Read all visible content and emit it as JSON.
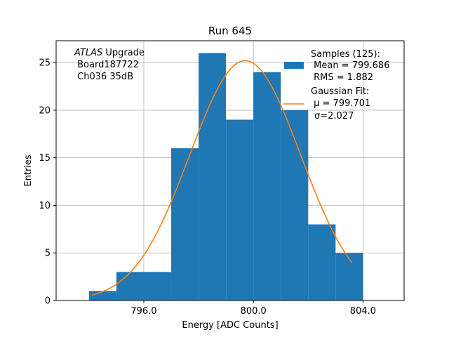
{
  "chart_data": {
    "type": "bar",
    "title": "Run 645",
    "xlabel": "Energy [ADC Counts]",
    "ylabel": "Entries",
    "xlim": [
      792.8,
      805.5
    ],
    "ylim": [
      0,
      27.3
    ],
    "grid": true,
    "x_ticks": [
      796.0,
      800.0,
      804.0
    ],
    "x_tick_labels": [
      "796.0",
      "800.0",
      "804.0"
    ],
    "y_ticks": [
      0,
      5,
      10,
      15,
      20,
      25
    ],
    "y_tick_labels": [
      "0",
      "5",
      "10",
      "15",
      "20",
      "25"
    ],
    "bins": [
      {
        "x0": 794.0,
        "x1": 795.0,
        "count": 1
      },
      {
        "x0": 795.0,
        "x1": 796.0,
        "count": 3
      },
      {
        "x0": 796.0,
        "x1": 797.0,
        "count": 3
      },
      {
        "x0": 797.0,
        "x1": 798.0,
        "count": 16
      },
      {
        "x0": 798.0,
        "x1": 799.0,
        "count": 26
      },
      {
        "x0": 799.0,
        "x1": 800.0,
        "count": 19
      },
      {
        "x0": 800.0,
        "x1": 801.0,
        "count": 24
      },
      {
        "x0": 801.0,
        "x1": 802.0,
        "count": 20
      },
      {
        "x0": 802.0,
        "x1": 803.0,
        "count": 8
      },
      {
        "x0": 803.0,
        "x1": 804.0,
        "count": 5
      }
    ],
    "fit": {
      "type": "gaussian",
      "mu": 799.701,
      "sigma": 2.027,
      "amplitude": 25.2,
      "x_range": [
        794.1,
        803.6
      ]
    },
    "colors": {
      "histogram": "#1f77b4",
      "fit": "#ff7f0e",
      "grid": "#b0b0b0"
    },
    "legend": {
      "placement": "top-right",
      "samples_title": "Samples (125):",
      "samples_mean": " Mean = 799.686",
      "samples_rms": " RMS = 1.882",
      "fit_title": "Gaussian Fit:",
      "fit_mu": " μ = 799.701",
      "fit_sigma": "σ=2.027"
    },
    "annotation": {
      "experiment": "ATLAS",
      "experiment_suffix": " Upgrade",
      "board": " Board187722",
      "channel": " Ch036 35dB"
    }
  }
}
